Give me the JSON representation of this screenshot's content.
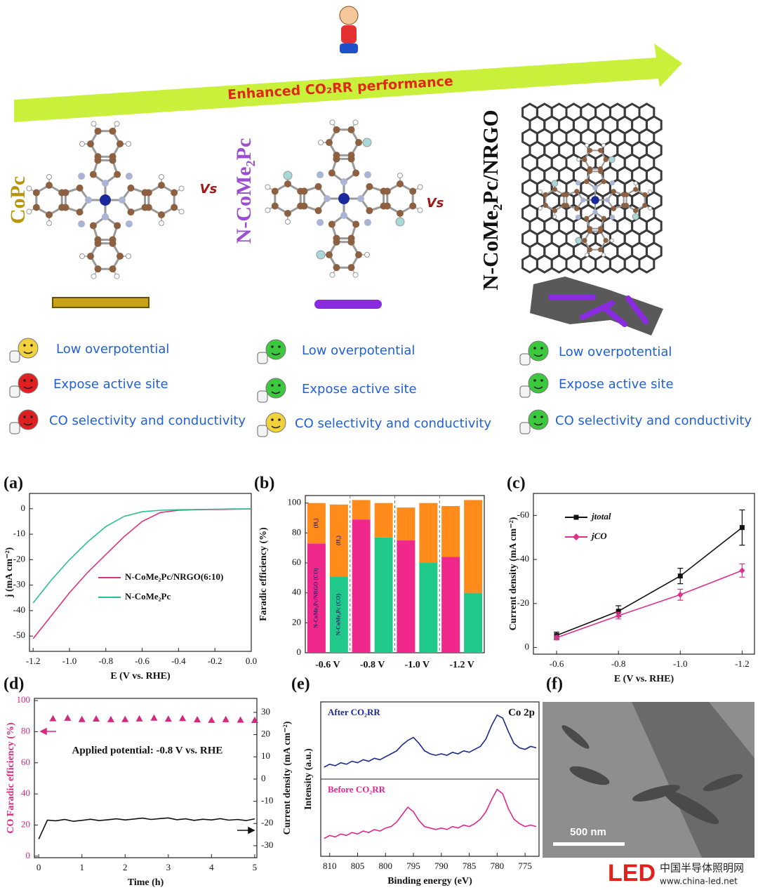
{
  "diagram": {
    "arrow_label": "Enhanced CO₂RR performance",
    "vs": [
      "Vs",
      "Vs"
    ],
    "columns": [
      {
        "name": "CoPc",
        "color": "#b8960c",
        "features": [
          "Low overpotential",
          "Expose active site",
          "CO selectivity and conductivity"
        ],
        "face_colors": [
          "#f2d23c",
          "#e02020",
          "#e02020"
        ]
      },
      {
        "name": "N-CoMe₂Pc",
        "color": "#9b4fd0",
        "features": [
          "Low overpotential",
          "Expose active site",
          "CO selectivity and conductivity"
        ],
        "face_colors": [
          "#3cc83c",
          "#3cc83c",
          "#f2d23c"
        ]
      },
      {
        "name": "N-CoMe₂Pc/NRGO",
        "color": "#111111",
        "features": [
          "Low overpotential",
          "Expose active site",
          "CO selectivity and conductivity"
        ],
        "face_colors": [
          "#3cc83c",
          "#3cc83c",
          "#3cc83c"
        ]
      }
    ]
  },
  "chart_data": [
    {
      "type": "line",
      "label": "(a)",
      "xlabel": "E (V vs. RHE)",
      "ylabel": "j (mA cm⁻²)",
      "x": [
        -1.2,
        -1.1,
        -1,
        -0.9,
        -0.8,
        -0.7,
        -0.6,
        -0.5,
        -0.4,
        -0.3,
        -0.2,
        -0.1,
        0
      ],
      "series": [
        {
          "name": "N-CoMe₂Pc/NRGO(6:10)",
          "color": "#e0307a",
          "values": [
            -51,
            -42,
            -33,
            -25,
            -18,
            -11,
            -5,
            -1.5,
            -0.6,
            -0.4,
            -0.3,
            -0.2,
            -0.1
          ]
        },
        {
          "name": "N-CoMe₂Pc",
          "color": "#2bbf8f",
          "values": [
            -37,
            -28,
            -20,
            -13,
            -7,
            -3,
            -1.2,
            -0.6,
            -0.4,
            -0.3,
            -0.2,
            -0.1,
            -0.1
          ]
        }
      ],
      "xlim": [
        -1.22,
        0
      ],
      "ylim": [
        -56,
        6
      ],
      "xticks": [
        -1.2,
        {
          "value": -1,
          "label": "-1.0"
        },
        -0.8,
        -0.6,
        -0.4,
        -0.2,
        {
          "value": 0,
          "label": "0.0"
        }
      ],
      "yticks": [
        0,
        -10,
        -20,
        -30,
        -40,
        -50
      ],
      "legend": "center-right"
    },
    {
      "type": "bar",
      "label": "(b)",
      "ylabel": "Faradic efficiency (%)",
      "categories": [
        "-0.6 V",
        "-0.8 V",
        "-1.0 V",
        "-1.2 V"
      ],
      "series": [
        {
          "name": "N-CoMe₂Pc/NRGO (CO)",
          "color": "#f0288c",
          "stack": 0,
          "values": [
            73,
            89,
            75,
            64
          ]
        },
        {
          "name": "(H₂)",
          "color": "#ff8c1a",
          "stack": 0,
          "values": [
            27,
            13,
            22,
            34
          ]
        },
        {
          "name": "N-CoMe₂Pc (CO)",
          "color": "#20c98a",
          "stack": 1,
          "values": [
            51,
            77,
            60,
            40
          ]
        },
        {
          "name": "(H₂)",
          "color": "#ff8c1a",
          "stack": 1,
          "values": [
            48,
            23,
            40,
            62
          ]
        }
      ],
      "ylim": [
        0,
        105
      ],
      "yticks": [
        0,
        20,
        40,
        60,
        80,
        100
      ]
    },
    {
      "type": "line",
      "label": "(c)",
      "xlabel": "E (V vs. RHE)",
      "ylabel": "Current density (mA cm⁻²)",
      "x": [
        -0.6,
        -0.8,
        -1,
        -1.2
      ],
      "series": [
        {
          "name": "jtotal",
          "color": "#111111",
          "marker": "square",
          "values": [
            -5.5,
            -16.5,
            -32.5,
            -54.5
          ],
          "errors": [
            1.5,
            2.5,
            3.5,
            8
          ]
        },
        {
          "name": "jCO",
          "color": "#e0308c",
          "marker": "diamond",
          "values": [
            -4.5,
            -14.5,
            -24,
            -35
          ],
          "errors": [
            1,
            1.5,
            2.5,
            3
          ]
        }
      ],
      "xlim": [
        -0.525,
        -1.24
      ],
      "ylim": [
        3,
        -70
      ],
      "xticks": [
        -0.6,
        -0.8,
        {
          "value": -1,
          "label": "-1.0"
        },
        -1.2
      ],
      "yticks": [
        0,
        -20,
        -40,
        -60
      ],
      "legend": "upper-left"
    },
    {
      "type": "line",
      "label": "(d)",
      "xlabel": "Time (h)",
      "ylabel": "CO Faradic efficiency (%)",
      "y2label": "Current density (mA cm⁻²)",
      "annotation": "Applied potential: -0.8 V vs. RHE",
      "series": [
        {
          "color": "#d6287e",
          "marker": "triangle",
          "line": false,
          "x": [
            0.33,
            0.67,
            1,
            1.33,
            1.67,
            2,
            2.33,
            2.67,
            3,
            3.33,
            3.67,
            4,
            4.33,
            4.67,
            5
          ],
          "values": [
            88.5,
            88.8,
            88,
            88.3,
            87.9,
            88,
            88.4,
            88.9,
            88.2,
            88.6,
            87.8,
            87.5,
            87.9,
            87.6,
            87.4
          ]
        },
        {
          "color": "#111111",
          "axis": "y2",
          "x": [
            0,
            0.2,
            0.4,
            0.6,
            0.8,
            1,
            1.2,
            1.4,
            1.6,
            1.8,
            2,
            2.2,
            2.4,
            2.6,
            2.8,
            3,
            3.2,
            3.4,
            3.6,
            3.8,
            4,
            4.2,
            4.4,
            4.6,
            4.8,
            5
          ],
          "values": [
            -27,
            -18.5,
            -18.8,
            -18.2,
            -19,
            -18.6,
            -18.1,
            -18.7,
            -18.3,
            -17.9,
            -18.4,
            -18,
            -17.6,
            -18.2,
            -17.8,
            -17.5,
            -18.3,
            -17.9,
            -18.6,
            -18.1,
            -18.4,
            -17.8,
            -18.5,
            -18.2,
            -18.7,
            -17.9
          ]
        }
      ],
      "xlim": [
        -0.1,
        5.05
      ],
      "ylim": [
        -1,
        101.4
      ],
      "y2lim": [
        -35.4,
        36.3
      ],
      "xticks": [
        0,
        1,
        2,
        3,
        4,
        5
      ],
      "yticks": [
        0,
        20,
        40,
        60,
        80,
        100
      ],
      "y2ticks": [
        30,
        20,
        10,
        0,
        -10,
        -20,
        -30
      ]
    },
    {
      "type": "line",
      "label": "(e)",
      "xlabel": "Binding energy (eV)",
      "ylabel": "Intensity (a.u.)",
      "annotation": "Co 2p",
      "panels": "stacked",
      "x": [
        811,
        810,
        809,
        808,
        807,
        806,
        805,
        804,
        803,
        802,
        801,
        800,
        799,
        798,
        797,
        796,
        795,
        794,
        793,
        792,
        791,
        790,
        789,
        788,
        787,
        786,
        785,
        784,
        783,
        782,
        781,
        780,
        779,
        778,
        777,
        776,
        775,
        774,
        773
      ],
      "series": [
        {
          "name": "After CO₂RR",
          "color": "#1a2a8c",
          "values": [
            0.8,
            1.0,
            0.9,
            1.1,
            1.0,
            1.2,
            1.1,
            1.3,
            1.2,
            1.4,
            1.3,
            1.5,
            1.7,
            1.9,
            2.3,
            2.6,
            2.8,
            2.4,
            1.9,
            1.7,
            1.6,
            1.7,
            1.6,
            1.8,
            1.7,
            1.9,
            1.8,
            2.0,
            2.2,
            2.7,
            3.6,
            4.3,
            4.1,
            3.2,
            2.4,
            2.1,
            2.0,
            2.2,
            2.1
          ]
        },
        {
          "name": "Before CO₂RR",
          "color": "#e0288c",
          "values": [
            1.2,
            1.4,
            1.3,
            1.5,
            1.4,
            1.6,
            1.5,
            1.7,
            1.6,
            1.8,
            1.7,
            1.9,
            2.0,
            2.3,
            2.8,
            3.3,
            3.0,
            2.4,
            2.0,
            1.9,
            1.8,
            1.9,
            1.8,
            2.0,
            1.9,
            2.1,
            2.0,
            2.2,
            2.5,
            3.0,
            3.8,
            4.5,
            4.2,
            3.2,
            2.5,
            2.2,
            2.0,
            2.1,
            2.0
          ]
        }
      ],
      "xlim": [
        811.6,
        772.5
      ],
      "ylim": [
        0,
        5
      ],
      "xticks": [
        810,
        805,
        800,
        795,
        790,
        785,
        780,
        775
      ]
    }
  ],
  "image": {
    "label": "(f)",
    "scale_bar": "500 nm"
  },
  "watermark": {
    "logo": "LED",
    "name": "中国半导体照明网",
    "url": "www.china-led.net"
  }
}
